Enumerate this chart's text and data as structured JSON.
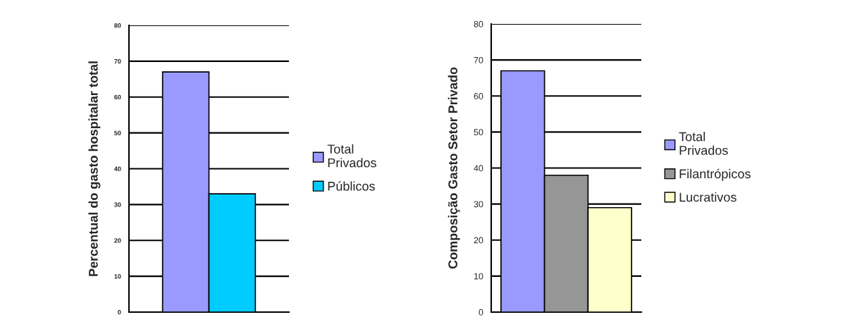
{
  "chart_data": [
    {
      "type": "bar",
      "ylabel": "Percentual do gasto hospitalar total",
      "categories": [
        null
      ],
      "series": [
        {
          "name": "Total Privados",
          "color": "#9999ff",
          "values": [
            67
          ]
        },
        {
          "name": "Públicos",
          "color": "#00ccff",
          "values": [
            33
          ]
        }
      ],
      "ylim": [
        0,
        80
      ],
      "yticks": [
        0,
        10,
        20,
        30,
        40,
        50,
        60,
        70,
        80
      ],
      "grid": "y",
      "legend": "right"
    },
    {
      "type": "bar",
      "ylabel": "Composição Gasto Setor Privado",
      "categories": [
        null
      ],
      "series": [
        {
          "name": "Total Privados",
          "color": "#9999ff",
          "values": [
            67
          ]
        },
        {
          "name": "Filantrópicos",
          "color": "#969696",
          "values": [
            38
          ]
        },
        {
          "name": "Lucrativos",
          "color": "#ffffcc",
          "values": [
            29
          ]
        }
      ],
      "ylim": [
        0,
        80
      ],
      "yticks": [
        0,
        10,
        20,
        30,
        40,
        50,
        60,
        70,
        80
      ],
      "grid": "y",
      "legend": "right"
    }
  ]
}
